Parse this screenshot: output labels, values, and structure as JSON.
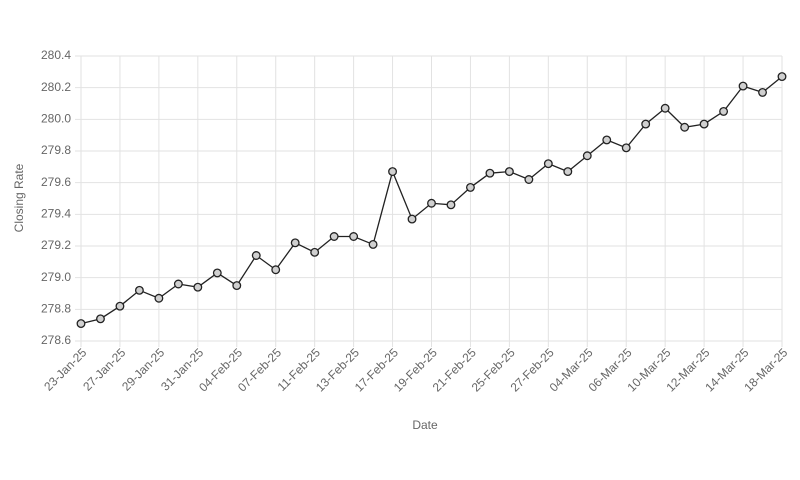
{
  "chart_data": {
    "type": "line",
    "x_label": "Date",
    "y_label": "Closing Rate",
    "categories": [
      "23-Jan-25",
      null,
      "27-Jan-25",
      null,
      "29-Jan-25",
      null,
      "31-Jan-25",
      null,
      "04-Feb-25",
      null,
      "07-Feb-25",
      null,
      "11-Feb-25",
      null,
      "13-Feb-25",
      null,
      "17-Feb-25",
      null,
      "19-Feb-25",
      null,
      "21-Feb-25",
      null,
      "25-Feb-25",
      null,
      "27-Feb-25",
      null,
      "04-Mar-25",
      null,
      "06-Mar-25",
      null,
      "10-Mar-25",
      null,
      "12-Mar-25",
      null,
      "14-Mar-25",
      null,
      "18-Mar-25"
    ],
    "series": [
      {
        "name": "Closing Rate",
        "color": "#222222",
        "values": [
          278.71,
          278.74,
          278.82,
          278.92,
          278.87,
          278.96,
          278.94,
          279.03,
          278.95,
          279.14,
          279.05,
          279.22,
          279.16,
          279.26,
          279.26,
          279.21,
          279.67,
          279.37,
          279.47,
          279.46,
          279.57,
          279.66,
          279.67,
          279.62,
          279.72,
          279.67,
          279.77,
          279.87,
          279.82,
          279.97,
          280.07,
          279.95,
          279.97,
          280.05,
          280.21,
          280.17,
          280.27
        ]
      }
    ],
    "ylim": [
      278.6,
      280.4
    ],
    "yticks": [
      278.6,
      278.8,
      {
        "value": 279.0,
        "label": "279.0"
      },
      279.2,
      279.4,
      279.6,
      279.8,
      {
        "value": 280.0,
        "label": "280.0"
      },
      280.2,
      280.4
    ],
    "grid": true
  }
}
